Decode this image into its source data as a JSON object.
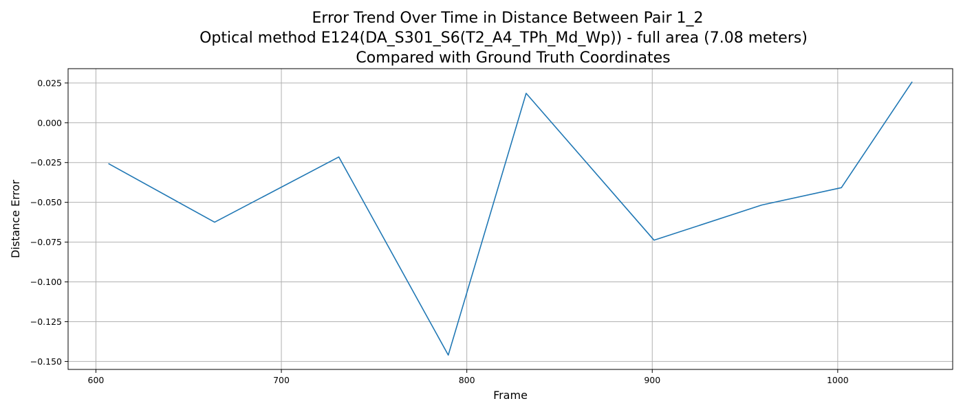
{
  "chart_data": {
    "type": "line",
    "title_lines": [
      "Error Trend Over Time in Distance Between Pair 1_2",
      "Optical method E124(DA_S301_S6(T2_A4_TPh_Md_Wp)) - full area (7.08 meters)",
      "Compared with Ground Truth Coordinates"
    ],
    "xlabel": "Frame",
    "ylabel": "Distance Error",
    "xlim": [
      585,
      1062
    ],
    "ylim": [
      -0.155,
      0.034
    ],
    "xticks": [
      600,
      700,
      800,
      900,
      1000
    ],
    "xtick_labels": [
      "600",
      "700",
      "800",
      "900",
      "1000"
    ],
    "yticks": [
      0.025,
      0.0,
      -0.025,
      -0.05,
      -0.075,
      -0.1,
      -0.125,
      -0.15
    ],
    "ytick_labels": [
      "0.025",
      "0.000",
      "−0.025",
      "−0.050",
      "−0.075",
      "−0.100",
      "−0.125",
      "−0.150"
    ],
    "grid": true,
    "series": [
      {
        "color": "#1f77b4",
        "x": [
          607,
          664,
          731,
          790,
          832,
          901,
          959,
          1002,
          1040
        ],
        "y": [
          -0.0258,
          -0.0625,
          -0.0215,
          -0.146,
          0.0185,
          -0.0738,
          -0.0517,
          -0.0408,
          0.0255
        ]
      }
    ]
  }
}
